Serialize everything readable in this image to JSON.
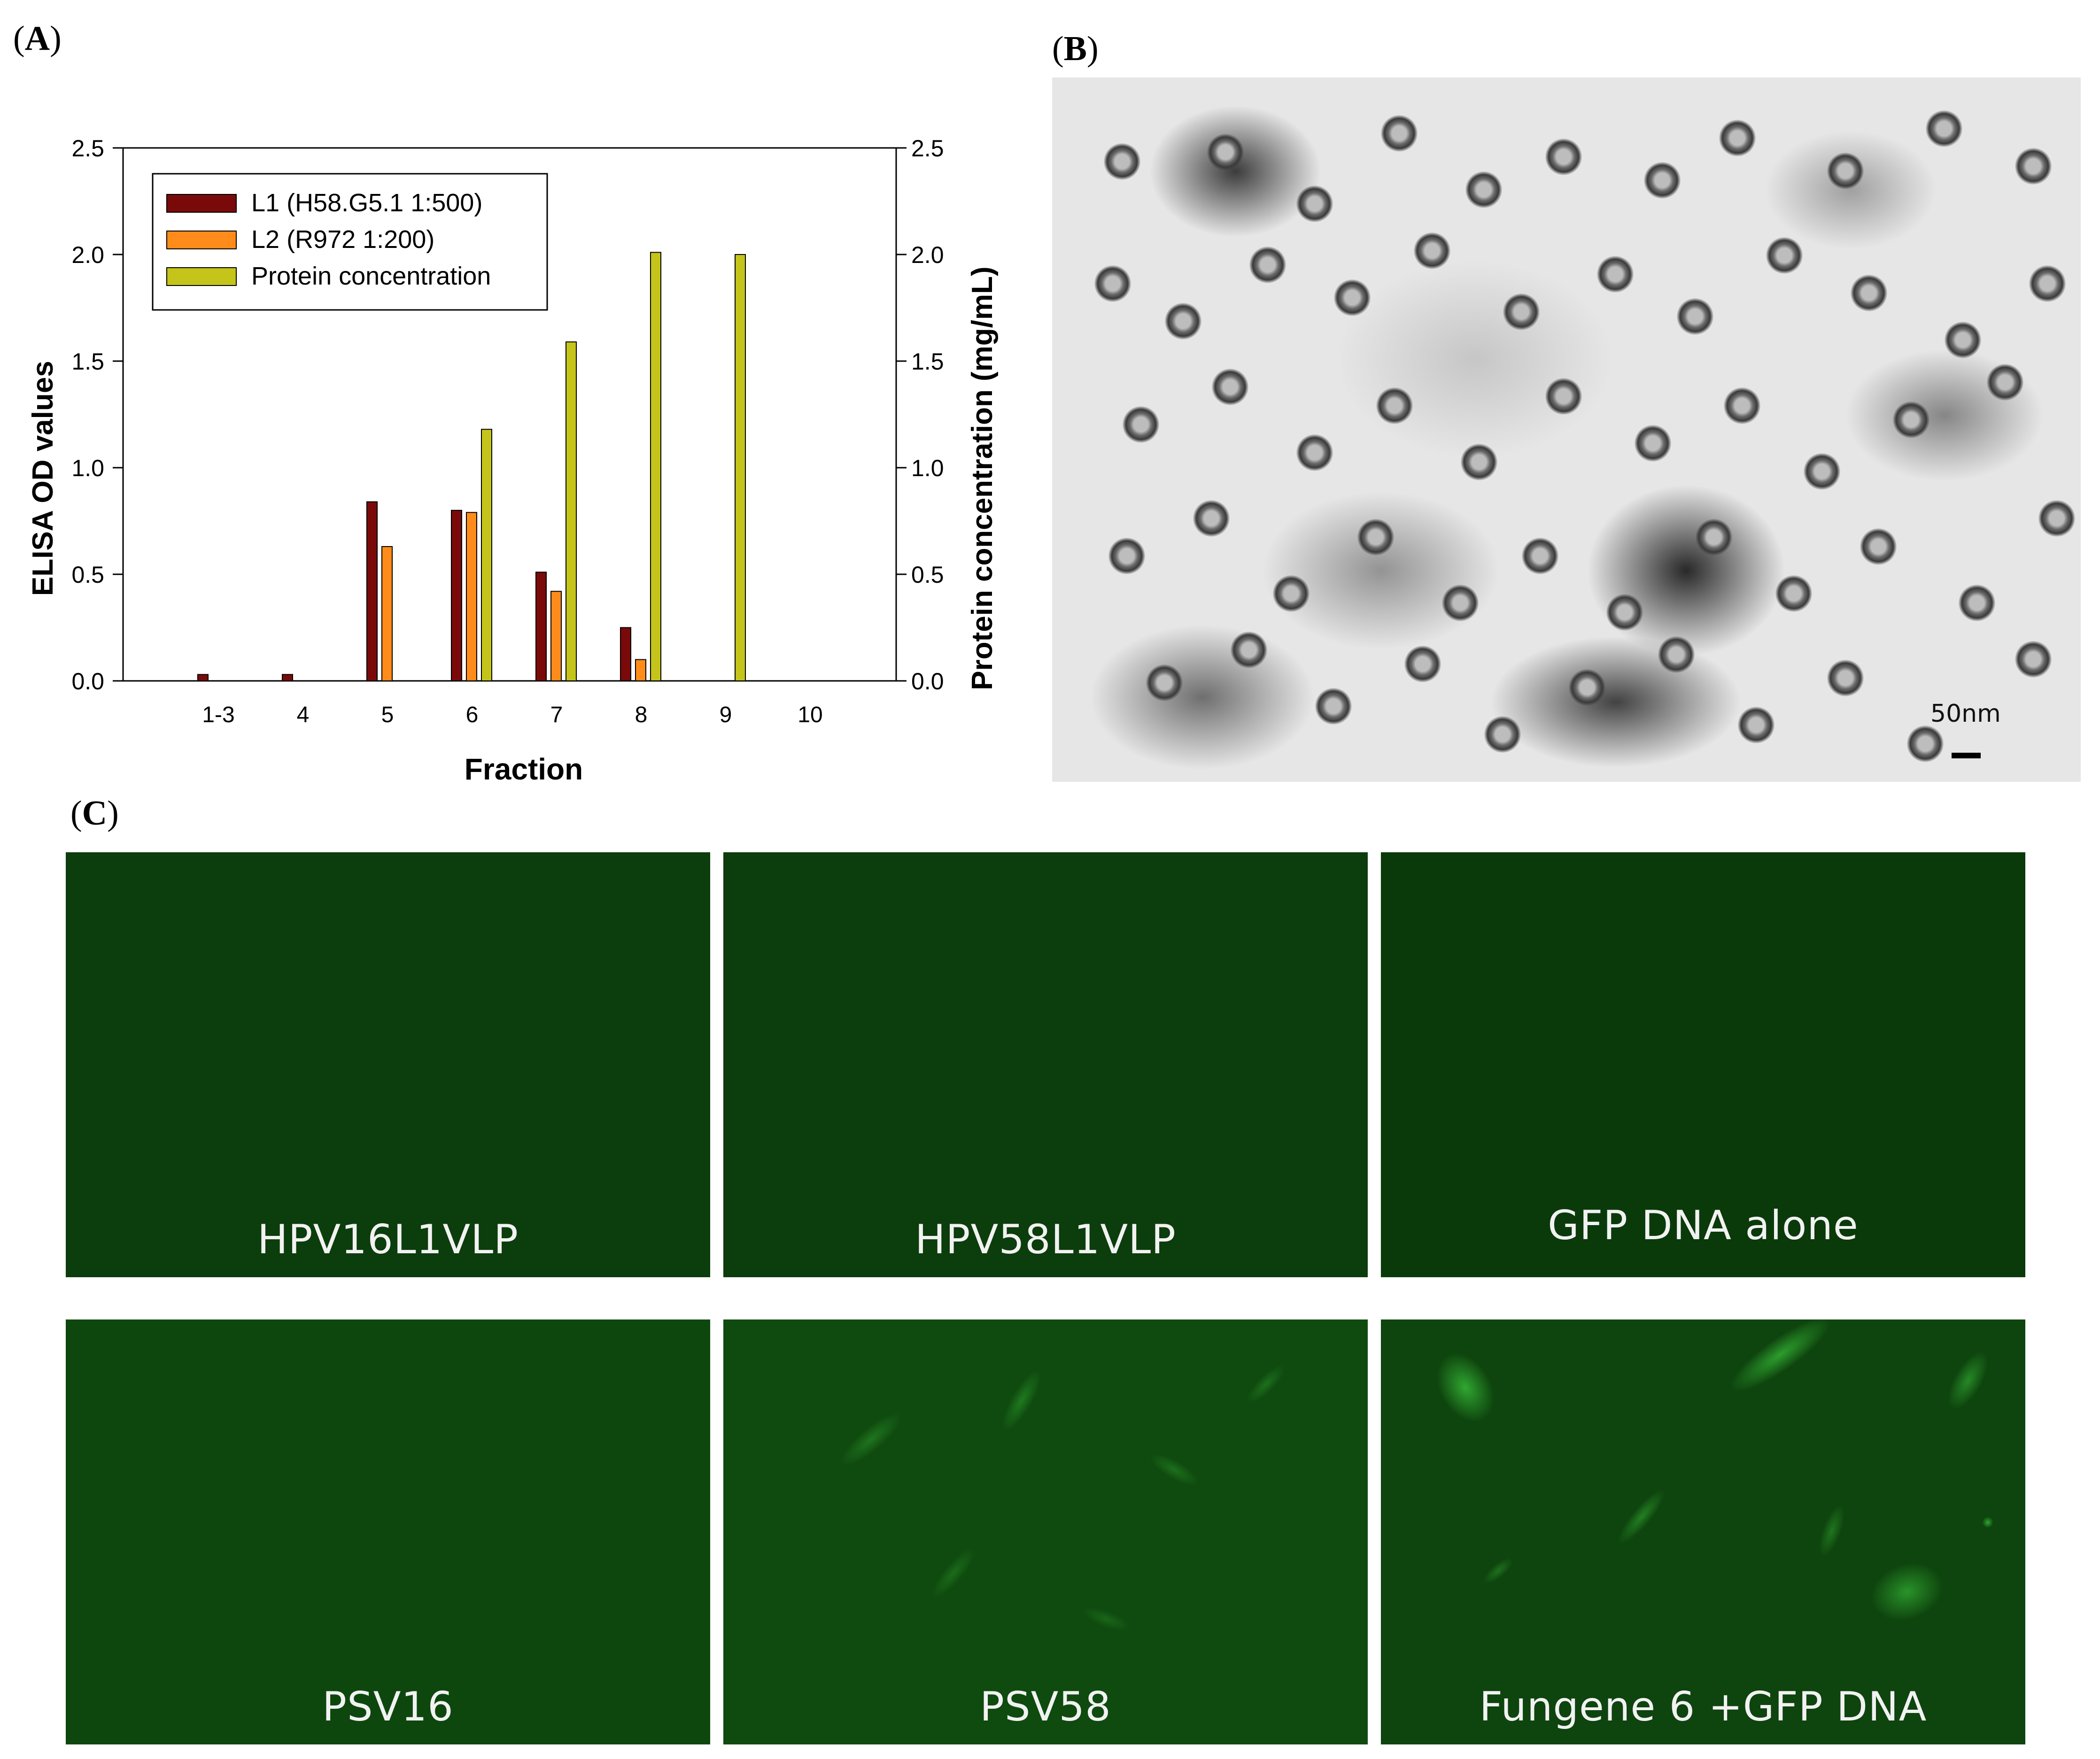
{
  "panels": {
    "a": "A",
    "b": "B",
    "c": "C"
  },
  "chart_data": {
    "type": "bar",
    "categories": [
      "1-3",
      "4",
      "5",
      "6",
      "7",
      "8",
      "9",
      "10"
    ],
    "series": [
      {
        "name": "L1 (H58.G5.1 1:500)",
        "color": "#7a0a0a",
        "axis": "left",
        "values": [
          0.03,
          0.03,
          0.84,
          0.8,
          0.51,
          0.25,
          0.0,
          0.0
        ]
      },
      {
        "name": "L2 (R972 1:200)",
        "color": "#ff8c1a",
        "axis": "left",
        "values": [
          0.0,
          0.0,
          0.63,
          0.79,
          0.42,
          0.1,
          0.0,
          0.0
        ]
      },
      {
        "name": "Protein concentration",
        "color": "#c4c41a",
        "axis": "right",
        "values": [
          0.0,
          0.0,
          0.0,
          1.18,
          1.59,
          2.01,
          2.0,
          0.0
        ]
      }
    ],
    "xlabel": "Fraction",
    "ylabel": "ELISA OD values",
    "y2label": "Protein concentration (mg/mL)",
    "ylim": [
      0,
      2.5
    ],
    "y2lim": [
      0,
      2.5
    ],
    "yticks": [
      "0.0",
      "0.5",
      "1.0",
      "1.5",
      "2.0",
      "2.5"
    ],
    "grid": false,
    "legend": "top-left"
  },
  "em_image": {
    "scale_label": "50nm"
  },
  "fluorescence": [
    {
      "caption": "HPV16L1VLP"
    },
    {
      "caption": "HPV58L1VLP"
    },
    {
      "caption": "GFP DNA alone"
    },
    {
      "caption": "PSV16"
    },
    {
      "caption": "PSV58"
    },
    {
      "caption": "Fungene 6 +GFP DNA"
    }
  ]
}
